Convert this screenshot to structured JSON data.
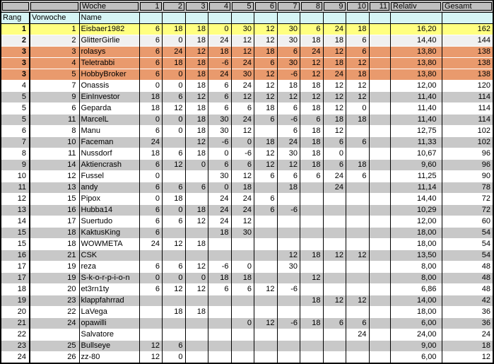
{
  "table": {
    "header1": {
      "woche_label": "Woche",
      "week_labels": [
        "1",
        "2",
        "3",
        "4",
        "5",
        "6",
        "7",
        "8",
        "9",
        "10",
        "11"
      ],
      "relativ_label": "Relativ",
      "gesamt_label": "Gesamt"
    },
    "header2": {
      "rang_label": "Rang",
      "vorwoche_label": "Vorwoche",
      "name_label": "Name"
    },
    "rows": [
      {
        "rang": "1",
        "vorwoche": "1",
        "name": "Eisbaer1982",
        "weeks": [
          "6",
          "18",
          "18",
          "0",
          "30",
          "12",
          "30",
          "6",
          "24",
          "18",
          ""
        ],
        "relativ": "16,20",
        "gesamt": "162",
        "style": "gold"
      },
      {
        "rang": "2",
        "vorwoche": "2",
        "name": "GlitterGirlie",
        "weeks": [
          "6",
          "0",
          "18",
          "24",
          "12",
          "12",
          "30",
          "18",
          "18",
          "6",
          ""
        ],
        "relativ": "14,40",
        "gesamt": "144",
        "style": "silver"
      },
      {
        "rang": "3",
        "vorwoche": "3",
        "name": "rolasys",
        "weeks": [
          "6",
          "24",
          "12",
          "18",
          "12",
          "18",
          "6",
          "24",
          "12",
          "6",
          ""
        ],
        "relativ": "13,80",
        "gesamt": "138",
        "style": "bronze"
      },
      {
        "rang": "3",
        "vorwoche": "4",
        "name": "Teletrabbi",
        "weeks": [
          "6",
          "18",
          "18",
          "-6",
          "24",
          "6",
          "30",
          "12",
          "18",
          "12",
          ""
        ],
        "relativ": "13,80",
        "gesamt": "138",
        "style": "bronze"
      },
      {
        "rang": "3",
        "vorwoche": "5",
        "name": "HobbyBroker",
        "weeks": [
          "6",
          "0",
          "18",
          "24",
          "30",
          "12",
          "-6",
          "12",
          "24",
          "18",
          ""
        ],
        "relativ": "13,80",
        "gesamt": "138",
        "style": "bronze"
      },
      {
        "rang": "4",
        "vorwoche": "7",
        "name": "Onassis",
        "weeks": [
          "0",
          "0",
          "18",
          "6",
          "24",
          "12",
          "18",
          "18",
          "12",
          "12",
          ""
        ],
        "relativ": "12,00",
        "gesamt": "120",
        "style": "white"
      },
      {
        "rang": "5",
        "vorwoche": "9",
        "name": "EinInvestor",
        "weeks": [
          "18",
          "6",
          "12",
          "6",
          "12",
          "12",
          "12",
          "12",
          "12",
          "12",
          ""
        ],
        "relativ": "11,40",
        "gesamt": "114",
        "style": "gray"
      },
      {
        "rang": "5",
        "vorwoche": "6",
        "name": "Geparda",
        "weeks": [
          "18",
          "12",
          "18",
          "6",
          "6",
          "18",
          "6",
          "18",
          "12",
          "0",
          ""
        ],
        "relativ": "11,40",
        "gesamt": "114",
        "style": "white"
      },
      {
        "rang": "5",
        "vorwoche": "11",
        "name": "MarcelL",
        "weeks": [
          "0",
          "0",
          "18",
          "30",
          "24",
          "6",
          "-6",
          "6",
          "18",
          "18",
          ""
        ],
        "relativ": "11,40",
        "gesamt": "114",
        "style": "gray"
      },
      {
        "rang": "6",
        "vorwoche": "8",
        "name": "Manu",
        "weeks": [
          "6",
          "0",
          "18",
          "30",
          "12",
          "",
          "6",
          "18",
          "12",
          "",
          ""
        ],
        "relativ": "12,75",
        "gesamt": "102",
        "style": "white"
      },
      {
        "rang": "7",
        "vorwoche": "10",
        "name": "Faceman",
        "weeks": [
          "24",
          "",
          "12",
          "-6",
          "0",
          "18",
          "24",
          "18",
          "6",
          "6",
          ""
        ],
        "relativ": "11,33",
        "gesamt": "102",
        "style": "gray"
      },
      {
        "rang": "8",
        "vorwoche": "11",
        "name": "Nussdorf",
        "weeks": [
          "18",
          "6",
          "18",
          "0",
          "-6",
          "12",
          "30",
          "18",
          "0",
          "",
          ""
        ],
        "relativ": "10,67",
        "gesamt": "96",
        "style": "white"
      },
      {
        "rang": "9",
        "vorwoche": "14",
        "name": "Aktiencrash",
        "weeks": [
          "6",
          "12",
          "0",
          "6",
          "6",
          "12",
          "12",
          "18",
          "6",
          "18",
          ""
        ],
        "relativ": "9,60",
        "gesamt": "96",
        "style": "gray"
      },
      {
        "rang": "10",
        "vorwoche": "12",
        "name": "Fussel",
        "weeks": [
          "0",
          "",
          "",
          "30",
          "12",
          "6",
          "6",
          "6",
          "24",
          "6",
          ""
        ],
        "relativ": "11,25",
        "gesamt": "90",
        "style": "white"
      },
      {
        "rang": "11",
        "vorwoche": "13",
        "name": "andy",
        "weeks": [
          "6",
          "6",
          "6",
          "0",
          "18",
          "",
          "18",
          "",
          "24",
          "",
          ""
        ],
        "relativ": "11,14",
        "gesamt": "78",
        "style": "gray"
      },
      {
        "rang": "12",
        "vorwoche": "15",
        "name": "Pipox",
        "weeks": [
          "0",
          "18",
          "",
          "24",
          "24",
          "6",
          "",
          "",
          "",
          "",
          ""
        ],
        "relativ": "14,40",
        "gesamt": "72",
        "style": "white"
      },
      {
        "rang": "13",
        "vorwoche": "16",
        "name": "Hubba14",
        "weeks": [
          "6",
          "0",
          "18",
          "24",
          "24",
          "6",
          "-6",
          "",
          "",
          "",
          ""
        ],
        "relativ": "10,29",
        "gesamt": "72",
        "style": "gray"
      },
      {
        "rang": "14",
        "vorwoche": "17",
        "name": "Suertudo",
        "weeks": [
          "6",
          "6",
          "12",
          "24",
          "12",
          "",
          "",
          "",
          "",
          "",
          ""
        ],
        "relativ": "12,00",
        "gesamt": "60",
        "style": "white"
      },
      {
        "rang": "15",
        "vorwoche": "18",
        "name": "KaktusKing",
        "weeks": [
          "6",
          "",
          "",
          "18",
          "30",
          "",
          "",
          "",
          "",
          "",
          ""
        ],
        "relativ": "18,00",
        "gesamt": "54",
        "style": "gray"
      },
      {
        "rang": "15",
        "vorwoche": "18",
        "name": "WOWMETA",
        "weeks": [
          "24",
          "12",
          "18",
          "",
          "",
          "",
          "",
          "",
          "",
          "",
          ""
        ],
        "relativ": "18,00",
        "gesamt": "54",
        "style": "white"
      },
      {
        "rang": "16",
        "vorwoche": "21",
        "name": "CSK",
        "weeks": [
          "",
          "",
          "",
          "",
          "",
          "",
          "12",
          "18",
          "12",
          "12",
          ""
        ],
        "relativ": "13,50",
        "gesamt": "54",
        "style": "gray"
      },
      {
        "rang": "17",
        "vorwoche": "19",
        "name": "reza",
        "weeks": [
          "6",
          "6",
          "12",
          "-6",
          "0",
          "",
          "30",
          "",
          "",
          "",
          ""
        ],
        "relativ": "8,00",
        "gesamt": "48",
        "style": "white"
      },
      {
        "rang": "17",
        "vorwoche": "19",
        "name": "S-k-o-r-p-i-o-n",
        "weeks": [
          "0",
          "0",
          "0",
          "18",
          "18",
          "",
          "",
          "12",
          "",
          "",
          ""
        ],
        "relativ": "8,00",
        "gesamt": "48",
        "style": "gray"
      },
      {
        "rang": "18",
        "vorwoche": "20",
        "name": "et3rn1ty",
        "weeks": [
          "6",
          "12",
          "12",
          "6",
          "6",
          "12",
          "-6",
          "",
          "",
          "",
          ""
        ],
        "relativ": "6,86",
        "gesamt": "48",
        "style": "white"
      },
      {
        "rang": "19",
        "vorwoche": "23",
        "name": "klappfahrrad",
        "weeks": [
          "",
          "",
          "",
          "",
          "",
          "",
          "",
          "18",
          "12",
          "12",
          ""
        ],
        "relativ": "14,00",
        "gesamt": "42",
        "style": "gray"
      },
      {
        "rang": "20",
        "vorwoche": "22",
        "name": "LaVega",
        "weeks": [
          "",
          "18",
          "18",
          "",
          "",
          "",
          "",
          "",
          "",
          "",
          ""
        ],
        "relativ": "18,00",
        "gesamt": "36",
        "style": "white"
      },
      {
        "rang": "21",
        "vorwoche": "24",
        "name": "opawilli",
        "weeks": [
          "",
          "",
          "",
          "",
          "0",
          "12",
          "-6",
          "18",
          "6",
          "6",
          ""
        ],
        "relativ": "6,00",
        "gesamt": "36",
        "style": "gray"
      },
      {
        "rang": "22",
        "vorwoche": "",
        "name": "Salvatore",
        "weeks": [
          "",
          "",
          "",
          "",
          "",
          "",
          "",
          "",
          "",
          "24",
          ""
        ],
        "relativ": "24,00",
        "gesamt": "24",
        "style": "white"
      },
      {
        "rang": "23",
        "vorwoche": "25",
        "name": "Bullseye",
        "weeks": [
          "12",
          "6",
          "",
          "",
          "",
          "",
          "",
          "",
          "",
          "",
          ""
        ],
        "relativ": "9,00",
        "gesamt": "18",
        "style": "gray"
      },
      {
        "rang": "24",
        "vorwoche": "26",
        "name": "zz-80",
        "weeks": [
          "12",
          "0",
          "",
          "",
          "",
          "",
          "",
          "",
          "",
          "",
          ""
        ],
        "relativ": "6,00",
        "gesamt": "12",
        "style": "white"
      }
    ]
  },
  "colors": {
    "gold": "#FFFF80",
    "silver": "#F0F0F0",
    "bronze": "#E99A6D",
    "gray_row": "#C8C8C8",
    "header_gray": "#C0C0C0",
    "header_cyan": "#D6F5F5",
    "border": "#000000"
  }
}
